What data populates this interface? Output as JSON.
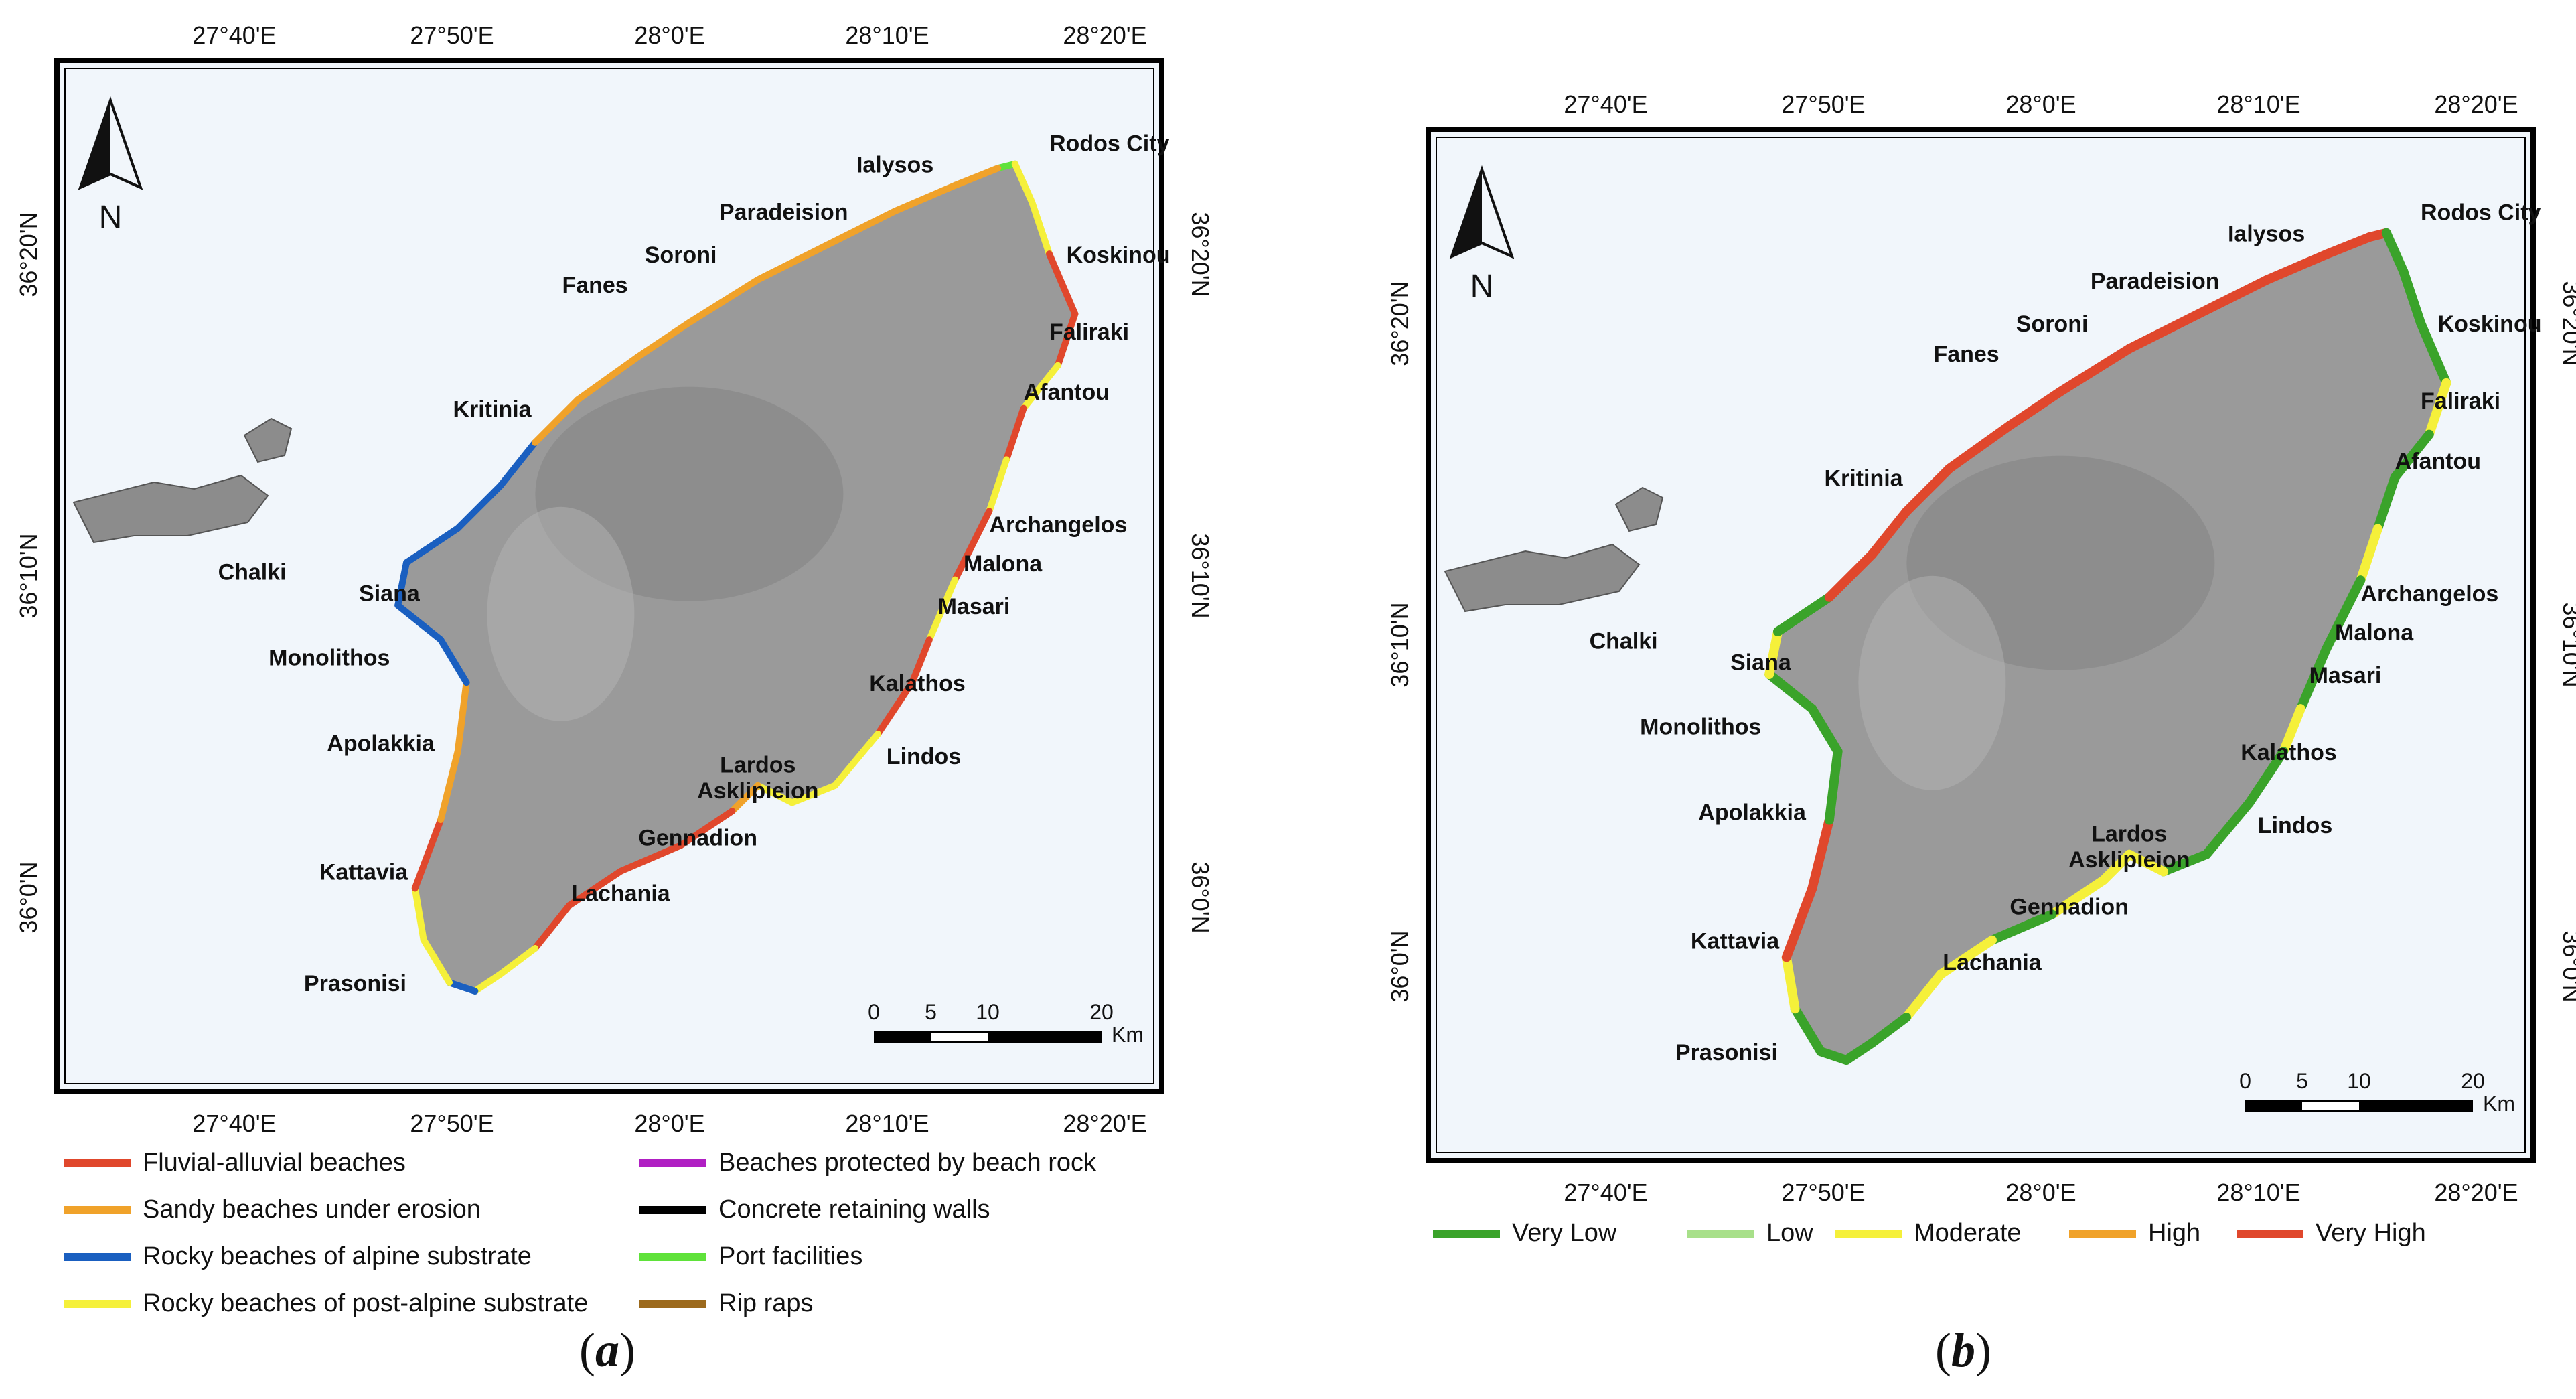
{
  "figure": {
    "panel_a": {
      "label": "a",
      "map": {
        "lon_labels": [
          "27°40'E",
          "27°50'E",
          "28°0'E",
          "28°10'E",
          "28°20'E"
        ],
        "lat_labels": [
          "36°0'N",
          "36°10'N",
          "36°20'N"
        ],
        "north": "N",
        "places": [
          "Rodos City",
          "Ialysos",
          "Paradeision",
          "Soroni",
          "Fanes",
          "Koskinou",
          "Faliraki",
          "Afantou",
          "Kritinia",
          "Chalki",
          "Siana",
          "Monolithos",
          "Apolakkia",
          "Kattavia",
          "Prasonisi",
          "Lachania",
          "Gennadion",
          "Asklipieion",
          "Lardos",
          "Lindos",
          "Kalathos",
          "Masari",
          "Malona",
          "Archangelos"
        ],
        "scale": {
          "ticks": [
            "0",
            "5",
            "10",
            "20"
          ],
          "unit": "Km"
        }
      },
      "legend": [
        {
          "label": "Fluvial-alluvial beaches",
          "color": "#e0472c"
        },
        {
          "label": "Sandy beaches under erosion",
          "color": "#f0a22a"
        },
        {
          "label": "Rocky beaches of alpine substrate",
          "color": "#1a5fc0"
        },
        {
          "label": "Rocky beaches of post-alpine substrate",
          "color": "#f5f03a"
        },
        {
          "label": "Beaches protected by beach rock",
          "color": "#b01fc3"
        },
        {
          "label": "Concrete retaining walls",
          "color": "#000000"
        },
        {
          "label": "Port facilities",
          "color": "#5fe23a"
        },
        {
          "label": "Rip raps",
          "color": "#9c6a1d"
        }
      ]
    },
    "panel_b": {
      "label": "b",
      "map": {
        "lon_labels": [
          "27°40'E",
          "27°50'E",
          "28°0'E",
          "28°10'E",
          "28°20'E"
        ],
        "lat_labels": [
          "36°0'N",
          "36°10'N",
          "36°20'N"
        ],
        "north": "N",
        "places": [
          "Rodos City",
          "Ialysos",
          "Paradeision",
          "Soroni",
          "Fanes",
          "Koskinou",
          "Faliraki",
          "Afantou",
          "Kritinia",
          "Chalki",
          "Siana",
          "Monolithos",
          "Apolakkia",
          "Kattavia",
          "Prasonisi",
          "Lachania",
          "Gennadion",
          "Asklipieion",
          "Lardos",
          "Lindos",
          "Kalathos",
          "Masari",
          "Malona",
          "Archangelos"
        ],
        "scale": {
          "ticks": [
            "0",
            "5",
            "10",
            "20"
          ],
          "unit": "Km"
        }
      },
      "legend": [
        {
          "label": "Very Low",
          "color": "#3aa32a"
        },
        {
          "label": "Low",
          "color": "#a8e08a"
        },
        {
          "label": "Moderate",
          "color": "#f5f03a"
        },
        {
          "label": "High",
          "color": "#f0a22a"
        },
        {
          "label": "Very High",
          "color": "#e0472c"
        }
      ]
    }
  }
}
